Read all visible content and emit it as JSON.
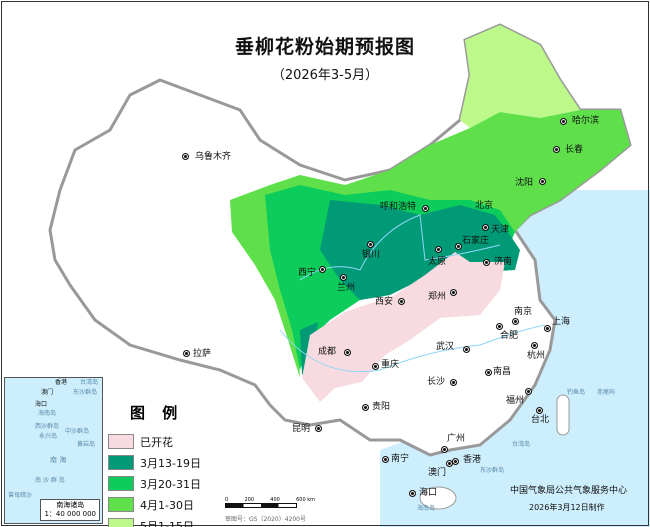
{
  "title": "垂柳花粉始期预报图",
  "subtitle": "（2026年3-5月）",
  "legend": {
    "title": "图 例",
    "items": [
      {
        "label": "已开花",
        "color": "#f8dbe0"
      },
      {
        "label": "3月13-19日",
        "color": "#009a76"
      },
      {
        "label": "3月20-31日",
        "color": "#0ccc5c"
      },
      {
        "label": "4月1-30日",
        "color": "#5fe04b"
      },
      {
        "label": "5月1-15日",
        "color": "#bcf98a"
      }
    ]
  },
  "cities": [
    "乌鲁木齐",
    "哈尔滨",
    "长春",
    "沈阳",
    "呼和浩特",
    "北京",
    "天津",
    "石家庄",
    "太原",
    "济南",
    "银川",
    "西宁",
    "兰州",
    "西安",
    "郑州",
    "南京",
    "上海",
    "合肥",
    "成都",
    "武汉",
    "杭州",
    "拉萨",
    "重庆",
    "长沙",
    "南昌",
    "福州",
    "贵阳",
    "台北",
    "昆明",
    "广州",
    "南宁",
    "香港",
    "澳门",
    "海口"
  ],
  "sea_labels": [
    "台湾岛",
    "东沙群岛",
    "海南岛",
    "钓鱼岛",
    "赤尾屿"
  ],
  "inset": {
    "caption": "南海诸岛",
    "scale": "1：40 000 000",
    "labels": [
      "香港",
      "澳门",
      "台湾岛",
      "东沙群岛",
      "海口",
      "海南岛",
      "西沙群岛",
      "永兴岛",
      "中沙群岛",
      "黄岩岛",
      "南 海",
      "南 沙 群 岛",
      "曾母暗沙"
    ]
  },
  "scale_bar": {
    "ticks": [
      "0",
      "200",
      "400",
      "600 km"
    ]
  },
  "review_number": "审图号：GS（2020）4200号",
  "credit": "中国气象局公共气象服务中心",
  "issue_date": "2026年3月12日制作",
  "colors": {
    "sea": "#cdeefd",
    "land": "#ffffff",
    "border": "#999999"
  }
}
